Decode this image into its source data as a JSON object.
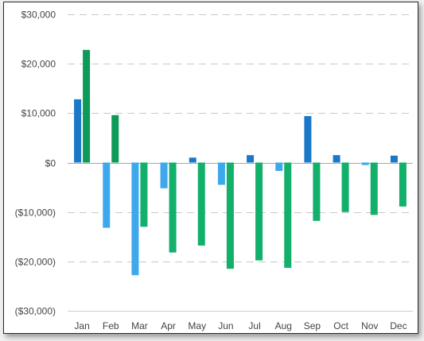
{
  "chart_data": {
    "type": "bar",
    "title": "",
    "xlabel": "",
    "ylabel": "",
    "categories": [
      "Jan",
      "Feb",
      "Mar",
      "Apr",
      "May",
      "Jun",
      "Jul",
      "Aug",
      "Sep",
      "Oct",
      "Nov",
      "Dec"
    ],
    "ylim": [
      -30000,
      30000
    ],
    "yticks": [
      30000,
      20000,
      10000,
      0,
      -10000,
      -20000,
      -30000
    ],
    "ytick_labels": [
      "$30,000",
      "$20,000",
      "$10,000",
      "$0",
      "($10,000)",
      "($20,000)",
      "($30,000)"
    ],
    "grid": "dashed horizontal",
    "legend": "none",
    "series": [
      {
        "values": [
          12800,
          -13200,
          -22800,
          -5200,
          1000,
          -4500,
          1500,
          -1700,
          9400,
          1500,
          -500,
          1400
        ],
        "color_positive": "#1a78c8",
        "color_negative": "#3ea8ec"
      },
      {
        "values": [
          22800,
          9600,
          -13000,
          -18200,
          -16800,
          -21500,
          -19800,
          -21300,
          -11800,
          -10000,
          -10600,
          -8900
        ],
        "color_positive": "#0e9a58",
        "color_negative": "#12b06a"
      }
    ],
    "colors": {
      "grid": "#c8c8c8",
      "baseline": "#a8a8a8",
      "axis": "#cfcfcf",
      "tick_text": "#444444"
    }
  }
}
